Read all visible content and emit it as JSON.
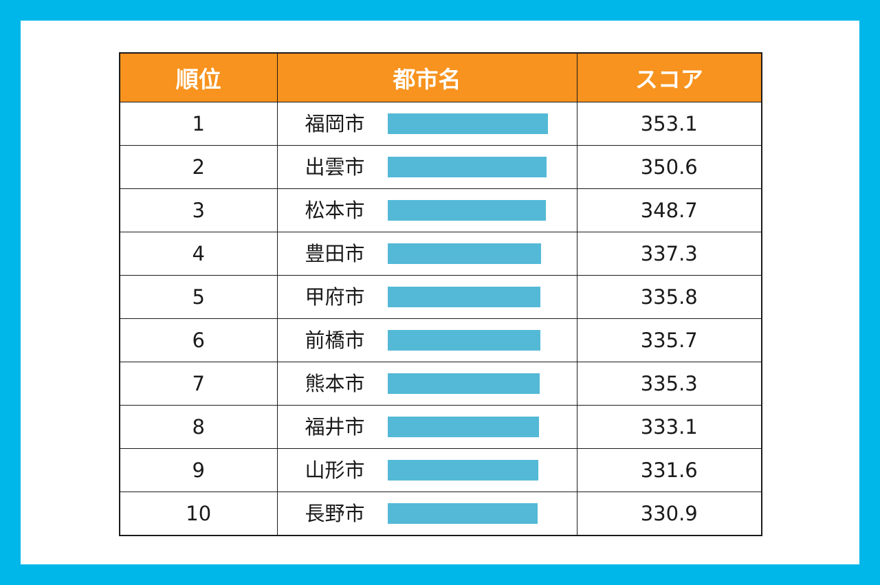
{
  "colors": {
    "frame": "#00b7ea",
    "header_bg": "#f7931e",
    "header_text": "#ffffff",
    "bar": "#53b9d6",
    "grid": "#1a1a1a"
  },
  "table": {
    "headers": {
      "rank": "順位",
      "city": "都市名",
      "score": "スコア"
    },
    "rows": [
      {
        "rank": "1",
        "city": "福岡市",
        "score": "353.1"
      },
      {
        "rank": "2",
        "city": "出雲市",
        "score": "350.6"
      },
      {
        "rank": "3",
        "city": "松本市",
        "score": "348.7"
      },
      {
        "rank": "4",
        "city": "豊田市",
        "score": "337.3"
      },
      {
        "rank": "5",
        "city": "甲府市",
        "score": "335.8"
      },
      {
        "rank": "6",
        "city": "前橋市",
        "score": "335.7"
      },
      {
        "rank": "7",
        "city": "熊本市",
        "score": "335.3"
      },
      {
        "rank": "8",
        "city": "福井市",
        "score": "333.1"
      },
      {
        "rank": "9",
        "city": "山形市",
        "score": "331.6"
      },
      {
        "rank": "10",
        "city": "長野市",
        "score": "330.9"
      }
    ]
  }
}
